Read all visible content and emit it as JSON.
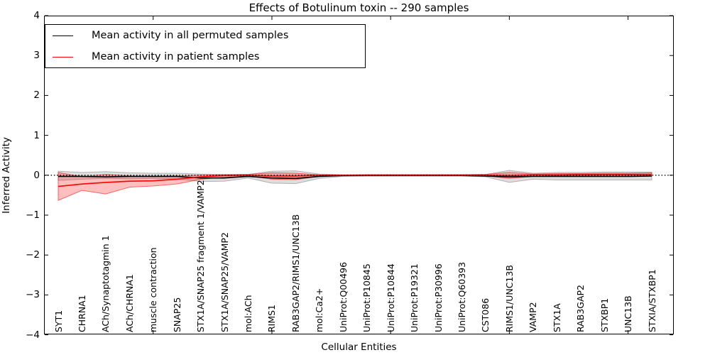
{
  "chart_data": {
    "type": "line",
    "title": "Effects of Botulinum toxin -- 290 samples",
    "xlabel": "Cellular Entities",
    "ylabel": "Inferred Activity",
    "ylim": [
      -4,
      4
    ],
    "y_ticks": [
      4,
      3,
      2,
      1,
      0,
      -1,
      -2,
      -3,
      -4
    ],
    "x_major_tick_indices": [
      4,
      9,
      14,
      19,
      24
    ],
    "grid": false,
    "legend_position": "upper left",
    "zero_line": true,
    "colors": {
      "permuted_line": "#000000",
      "permuted_band_fill": "rgba(0,0,0,0.13)",
      "permuted_band_edge": "rgba(0,0,0,0.25)",
      "patient_line": "#ff0000",
      "patient_band_fill": "rgba(255,0,0,0.25)",
      "patient_band_edge": "rgba(255,0,0,0.55)"
    },
    "categories": [
      "SYT1",
      "CHRNA1",
      "ACh/Synaptotagmin 1",
      "ACh/CHRNA1",
      "muscle contraction",
      "SNAP25",
      "STX1A/SNAP25 fragment 1/VAMP2",
      "STX1A/SNAP25/VAMP2",
      "mol:ACh",
      "RIMS1",
      "RAB3GAP2/RIMS1/UNC13B",
      "mol:Ca2+",
      "UniProt:Q00496",
      "UniProt:P10845",
      "UniProt:P10844",
      "UniProt:P19321",
      "UniProt:P30996",
      "UniProt:Q60393",
      "CST086",
      "RIMS1/UNC13B",
      "VAMP2",
      "STX1A",
      "RAB3GAP2",
      "STXBP1",
      "UNC13B",
      "STXIA/STXBP1"
    ],
    "series": [
      {
        "name": "Mean activity in all permuted samples",
        "color_key": "permuted",
        "values": [
          -0.03,
          -0.03,
          -0.04,
          -0.03,
          -0.03,
          -0.03,
          -0.07,
          -0.07,
          -0.03,
          -0.07,
          -0.08,
          -0.03,
          -0.01,
          -0.01,
          -0.01,
          -0.01,
          -0.01,
          -0.01,
          -0.02,
          -0.04,
          -0.03,
          -0.03,
          -0.03,
          -0.03,
          -0.03,
          -0.02
        ],
        "band_high": [
          0.1,
          0.07,
          0.09,
          0.06,
          0.05,
          0.05,
          0.03,
          0.02,
          0.02,
          0.1,
          0.11,
          0.03,
          0.01,
          0.02,
          0.02,
          0.02,
          0.02,
          0.02,
          0.02,
          0.12,
          0.05,
          0.07,
          0.07,
          0.08,
          0.08,
          0.08
        ],
        "band_low": [
          -0.13,
          -0.1,
          -0.08,
          -0.09,
          -0.08,
          -0.09,
          -0.16,
          -0.15,
          -0.07,
          -0.2,
          -0.21,
          -0.08,
          -0.03,
          -0.02,
          -0.02,
          -0.02,
          -0.02,
          -0.02,
          -0.04,
          -0.18,
          -0.1,
          -0.12,
          -0.12,
          -0.12,
          -0.12,
          -0.12
        ]
      },
      {
        "name": "Mean activity in patient samples",
        "color_key": "patient",
        "values": [
          -0.28,
          -0.22,
          -0.18,
          -0.15,
          -0.14,
          -0.1,
          -0.04,
          -0.01,
          0.0,
          -0.02,
          -0.02,
          0.0,
          0.0,
          0.0,
          0.0,
          0.0,
          0.0,
          0.0,
          0.0,
          -0.01,
          0.01,
          0.01,
          0.02,
          0.02,
          0.02,
          0.02
        ],
        "band_high": [
          0.07,
          -0.04,
          0.02,
          -0.02,
          -0.03,
          -0.02,
          0.0,
          0.01,
          0.02,
          0.06,
          0.05,
          0.01,
          0.01,
          0.01,
          0.01,
          0.01,
          0.01,
          0.01,
          0.02,
          0.07,
          0.03,
          0.04,
          0.04,
          0.05,
          0.05,
          0.06
        ],
        "band_low": [
          -0.63,
          -0.38,
          -0.47,
          -0.3,
          -0.27,
          -0.22,
          -0.1,
          -0.05,
          -0.02,
          -0.1,
          -0.11,
          -0.03,
          -0.01,
          -0.01,
          -0.01,
          -0.01,
          -0.01,
          -0.01,
          -0.02,
          -0.08,
          -0.03,
          -0.01,
          -0.01,
          0.0,
          0.0,
          0.0
        ]
      }
    ]
  }
}
